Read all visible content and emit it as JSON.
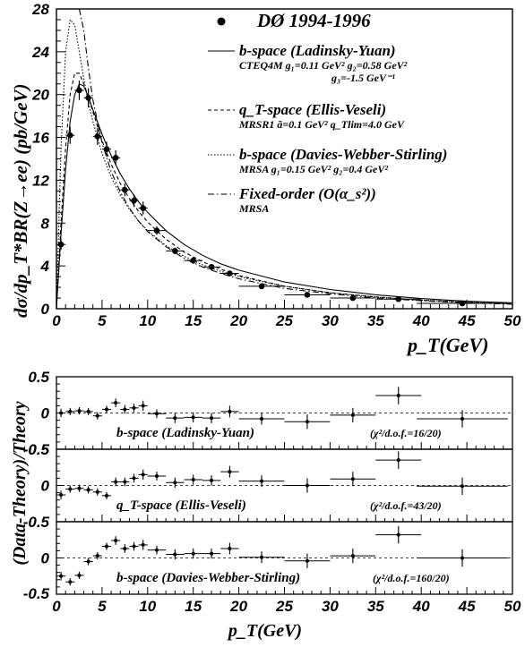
{
  "chart_data": [
    {
      "type": "scatter",
      "xlabel": "p_T(GeV)",
      "ylabel": "dσ/dp_T*BR(Z→ee) (pb/GeV)",
      "xlim": [
        0,
        50
      ],
      "ylim": [
        0,
        28
      ],
      "x_ticks": [
        "0",
        "5",
        "10",
        "15",
        "20",
        "25",
        "30",
        "35",
        "40",
        "45",
        "50"
      ],
      "y_ticks": [
        "0",
        "4",
        "8",
        "12",
        "16",
        "20",
        "24",
        "28"
      ],
      "legend": [
        {
          "label": "DØ 1994-1996",
          "style": "marker",
          "sub": []
        },
        {
          "label": "b-space (Ladinsky-Yuan)",
          "style": "solid",
          "sub": [
            "CTEQ4M g₁=0.11 GeV² g₂=0.58 GeV²",
            "g₃=-1.5 GeV⁻¹"
          ]
        },
        {
          "label": "q_T-space (Ellis-Veseli)",
          "style": "dashed",
          "sub": [
            "MRSR1 ã=0.1 GeV² q_Tlim=4.0 GeV"
          ]
        },
        {
          "label": "b-space (Davies-Webber-Stirling)",
          "style": "dotted",
          "sub": [
            "MRSA g₁=0.15 GeV² g₂=0.4 GeV²"
          ]
        },
        {
          "label": "Fixed-order (O(α_s²))",
          "style": "dashdot",
          "sub": [
            "MRSA"
          ]
        }
      ],
      "data": {
        "x": [
          0.5,
          1.5,
          2.5,
          3.5,
          4.5,
          5.5,
          6.5,
          7.5,
          8.5,
          9.5,
          11.0,
          13.0,
          15.0,
          17.0,
          19.0,
          22.5,
          27.5,
          32.5,
          37.5,
          44.5
        ],
        "y": [
          6.0,
          16.2,
          20.4,
          19.7,
          16.1,
          14.9,
          14.1,
          11.1,
          10.1,
          9.4,
          7.3,
          5.4,
          4.5,
          3.9,
          3.3,
          2.1,
          1.3,
          1.0,
          0.9,
          0.5
        ],
        "yerr": [
          0.5,
          0.8,
          0.9,
          0.9,
          0.8,
          0.7,
          0.7,
          0.6,
          0.6,
          0.6,
          0.4,
          0.3,
          0.3,
          0.25,
          0.25,
          0.15,
          0.1,
          0.08,
          0.08,
          0.06
        ],
        "xerr": [
          0.5,
          0.5,
          0.5,
          0.5,
          0.5,
          0.5,
          0.5,
          0.5,
          0.5,
          0.5,
          1.0,
          1.0,
          1.0,
          1.0,
          1.0,
          2.5,
          2.5,
          2.5,
          2.5,
          5.0
        ]
      },
      "curves": [
        {
          "name": "b-space (Ladinsky-Yuan)",
          "style": "solid",
          "x": [
            0,
            0.5,
            1,
            1.5,
            2,
            2.5,
            3,
            3.5,
            4,
            5,
            6,
            7,
            8,
            9,
            10,
            12,
            14,
            16,
            18,
            20,
            25,
            30,
            35,
            40,
            45,
            50
          ],
          "y": [
            0,
            7,
            13,
            17.5,
            20,
            21,
            20.8,
            19.8,
            18.6,
            16.3,
            14.3,
            12.6,
            11.2,
            10.0,
            9.0,
            7.3,
            6.0,
            5.0,
            4.2,
            3.6,
            2.5,
            1.8,
            1.3,
            0.95,
            0.7,
            0.55
          ]
        },
        {
          "name": "q_T-space (Ellis-Veseli)",
          "style": "dashed",
          "x": [
            0,
            0.5,
            1,
            1.5,
            2,
            2.5,
            3,
            3.5,
            4,
            5,
            6,
            7,
            8,
            9,
            10,
            12,
            14,
            16,
            18,
            20,
            25,
            30,
            35,
            40,
            45,
            50
          ],
          "y": [
            0,
            8,
            15,
            20,
            22,
            22,
            21,
            19.8,
            18.4,
            15.7,
            13.5,
            11.7,
            10.3,
            9.1,
            8.1,
            6.5,
            5.3,
            4.4,
            3.7,
            3.1,
            2.1,
            1.5,
            1.1,
            0.8,
            0.6,
            0.45
          ]
        },
        {
          "name": "b-space (Davies-Webber-Stirling)",
          "style": "dotted",
          "x": [
            0,
            0.5,
            1,
            1.5,
            2,
            2.5,
            3,
            3.5,
            4,
            5,
            6,
            7,
            8,
            9,
            10,
            12,
            14,
            16,
            18,
            20,
            25,
            30,
            35,
            40,
            45,
            50
          ],
          "y": [
            0,
            15,
            24,
            27,
            26.5,
            24,
            21.5,
            19.3,
            17.5,
            14.5,
            12.3,
            10.6,
            9.3,
            8.2,
            7.3,
            5.9,
            4.9,
            4.1,
            3.5,
            3.0,
            2.1,
            1.5,
            1.1,
            0.8,
            0.6,
            0.45
          ]
        },
        {
          "name": "Fixed-order (O(α_s²))",
          "style": "dashdot",
          "x": [
            2.5,
            3,
            3.5,
            4,
            5,
            6,
            7,
            8,
            9,
            10,
            12,
            14,
            16,
            18,
            20,
            25,
            30,
            35,
            40,
            45,
            50
          ],
          "y": [
            28,
            26,
            22.5,
            19.5,
            15.5,
            12.8,
            10.9,
            9.4,
            8.2,
            7.2,
            5.8,
            4.7,
            3.9,
            3.3,
            2.8,
            1.9,
            1.4,
            1.0,
            0.75,
            0.55,
            0.42
          ]
        }
      ]
    },
    {
      "type": "scatter",
      "xlabel": "p_T(GeV)",
      "ylabel": "(Data-Theory)/Theory",
      "xlim": [
        0,
        50
      ],
      "x_ticks": [
        "0",
        "5",
        "10",
        "15",
        "20",
        "25",
        "30",
        "35",
        "40",
        "45",
        "50"
      ],
      "panels": [
        {
          "theory": "b-space (Ladinsky-Yuan)",
          "chi2": "(χ²/d.o.f.=16/20)",
          "ylim": [
            -0.5,
            0.5
          ],
          "y_ticks": [
            "0.5",
            "0",
            "-0.5"
          ],
          "x": [
            0.5,
            1.5,
            2.5,
            3.5,
            4.5,
            5.5,
            6.5,
            7.5,
            8.5,
            9.5,
            11,
            13,
            15,
            17,
            19,
            22.5,
            27.5,
            32.5,
            37.5,
            44.5
          ],
          "y": [
            0.0,
            0.02,
            0.03,
            0.02,
            -0.04,
            0.05,
            0.14,
            0.05,
            0.07,
            0.1,
            -0.01,
            -0.07,
            -0.06,
            -0.07,
            0.02,
            -0.08,
            -0.12,
            -0.03,
            0.24,
            -0.08
          ],
          "yerr": [
            0.06,
            0.05,
            0.05,
            0.05,
            0.05,
            0.05,
            0.06,
            0.06,
            0.06,
            0.07,
            0.06,
            0.07,
            0.07,
            0.07,
            0.08,
            0.08,
            0.1,
            0.1,
            0.12,
            0.12
          ],
          "xerr": [
            0.5,
            0.5,
            0.5,
            0.5,
            0.5,
            0.5,
            0.5,
            0.5,
            0.5,
            0.5,
            1,
            1,
            1,
            1,
            1,
            2.5,
            2.5,
            2.5,
            2.5,
            5
          ]
        },
        {
          "theory": "q_T-space (Ellis-Veseli)",
          "chi2": "(χ²/d.o.f.=43/20)",
          "ylim": [
            -0.5,
            0.5
          ],
          "y_ticks": [
            "0",
            "-0.5"
          ],
          "x": [
            0.5,
            1.5,
            2.5,
            3.5,
            4.5,
            5.5,
            6.5,
            7.5,
            8.5,
            9.5,
            11,
            13,
            15,
            17,
            19,
            22.5,
            27.5,
            32.5,
            37.5,
            44.5
          ],
          "y": [
            -0.13,
            -0.05,
            -0.04,
            -0.06,
            -0.09,
            -0.14,
            0.05,
            0.05,
            0.1,
            0.15,
            0.13,
            0.04,
            0.08,
            0.07,
            0.19,
            0.06,
            0.0,
            0.09,
            0.35,
            -0.01
          ],
          "yerr": [
            0.06,
            0.05,
            0.05,
            0.05,
            0.05,
            0.05,
            0.06,
            0.06,
            0.06,
            0.07,
            0.06,
            0.07,
            0.07,
            0.07,
            0.08,
            0.08,
            0.1,
            0.1,
            0.12,
            0.12
          ],
          "xerr": [
            0.5,
            0.5,
            0.5,
            0.5,
            0.5,
            0.5,
            0.5,
            0.5,
            0.5,
            0.5,
            1,
            1,
            1,
            1,
            1,
            2.5,
            2.5,
            2.5,
            2.5,
            5
          ]
        },
        {
          "theory": "b-space (Davies-Webber-Stirling)",
          "chi2": "(χ²/d.o.f.=160/20)",
          "ylim": [
            -0.5,
            0.5
          ],
          "y_ticks": [
            "-0.5",
            "0",
            "-0.5"
          ],
          "x": [
            0.5,
            1.5,
            2.5,
            3.5,
            4.5,
            5.5,
            6.5,
            7.5,
            8.5,
            9.5,
            11,
            13,
            15,
            17,
            19,
            22.5,
            27.5,
            32.5,
            37.5,
            44.5
          ],
          "y": [
            -0.25,
            -0.33,
            -0.24,
            -0.05,
            0.03,
            0.16,
            0.24,
            0.13,
            0.16,
            0.18,
            0.11,
            0.05,
            0.06,
            0.06,
            0.13,
            0.01,
            -0.04,
            0.03,
            0.32,
            0.0
          ],
          "yerr": [
            0.06,
            0.05,
            0.05,
            0.05,
            0.05,
            0.05,
            0.06,
            0.06,
            0.06,
            0.07,
            0.06,
            0.07,
            0.07,
            0.07,
            0.08,
            0.08,
            0.1,
            0.1,
            0.12,
            0.12
          ],
          "xerr": [
            0.5,
            0.5,
            0.5,
            0.5,
            0.5,
            0.5,
            0.5,
            0.5,
            0.5,
            0.5,
            1,
            1,
            1,
            1,
            1,
            2.5,
            2.5,
            2.5,
            2.5,
            5
          ]
        }
      ]
    }
  ]
}
